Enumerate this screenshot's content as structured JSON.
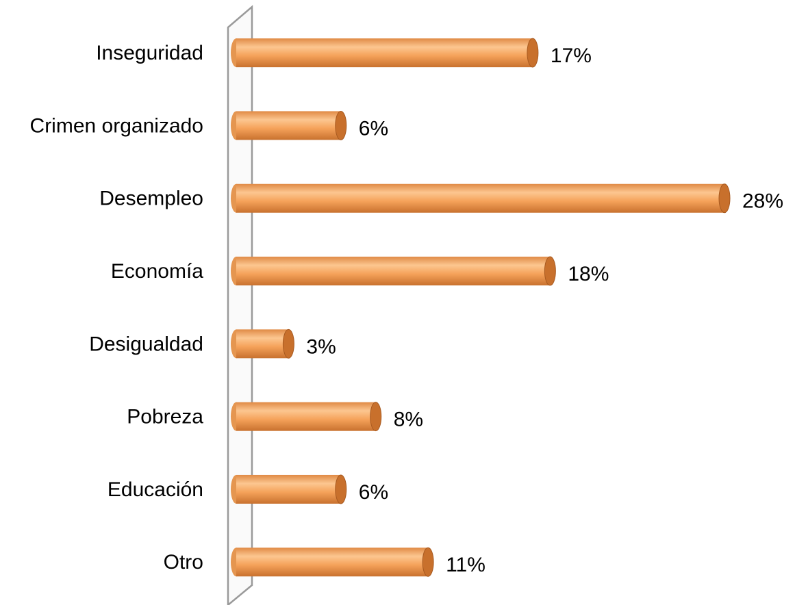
{
  "chart_data": {
    "type": "bar",
    "orientation": "horizontal",
    "categories": [
      "Inseguridad",
      "Crimen organizado",
      "Desempleo",
      "Economía",
      "Desigualdad",
      "Pobreza",
      "Educación",
      "Otro"
    ],
    "values": [
      17,
      6,
      28,
      18,
      3,
      8,
      6,
      11
    ],
    "value_labels": [
      "17%",
      "6%",
      "28%",
      "18%",
      "3%",
      "8%",
      "6%",
      "11%"
    ],
    "color": "#f39c4f",
    "xlim": [
      0,
      28
    ]
  }
}
